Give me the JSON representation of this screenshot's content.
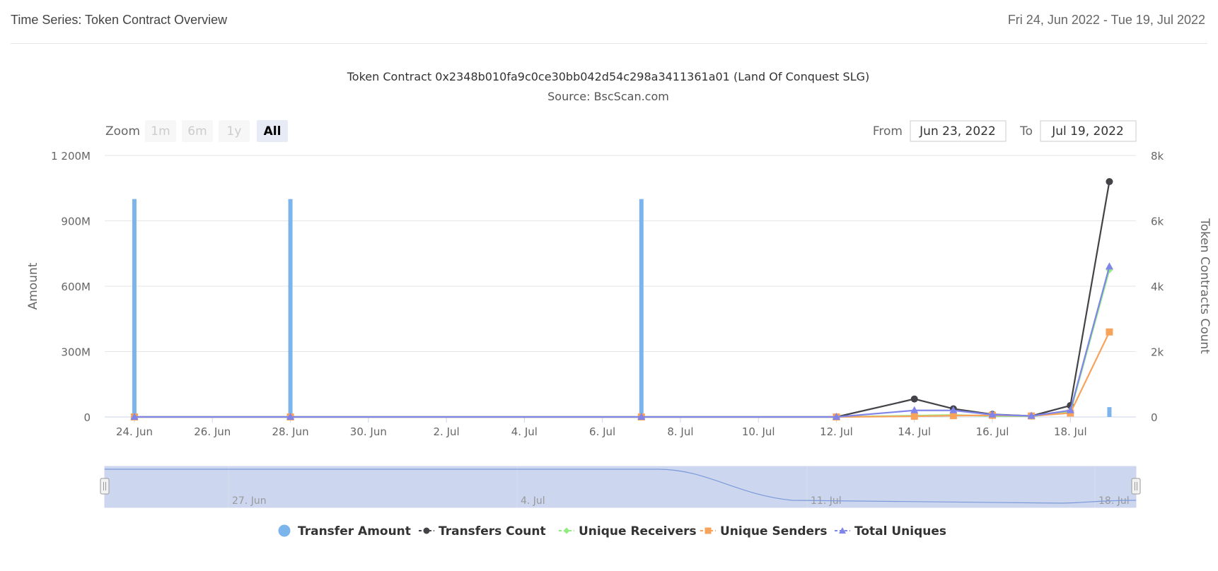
{
  "header": {
    "title": "Time Series: Token Contract Overview",
    "date_range": "Fri 24, Jun 2022 - Tue 19, Jul 2022"
  },
  "chart": {
    "title": "Token Contract 0x2348b010fa9c0ce30bb042d54c298a3411361a01 (Land Of Conquest SLG)",
    "subtitle": "Source: BscScan.com",
    "zoom_label": "Zoom",
    "zoom_buttons": [
      "1m",
      "6m",
      "1y",
      "All"
    ],
    "zoom_active": "All",
    "from_label": "From",
    "from_value": "Jun 23, 2022",
    "to_label": "To",
    "to_value": "Jul 19, 2022",
    "navigator_labels": [
      "27. Jun",
      "4. Jul",
      "11. Jul",
      "18. Jul"
    ]
  },
  "chart_data": {
    "type": "line",
    "x": [
      "2022-06-24",
      "2022-06-25",
      "2022-06-26",
      "2022-06-27",
      "2022-06-28",
      "2022-06-29",
      "2022-06-30",
      "2022-07-01",
      "2022-07-02",
      "2022-07-03",
      "2022-07-04",
      "2022-07-05",
      "2022-07-06",
      "2022-07-07",
      "2022-07-08",
      "2022-07-09",
      "2022-07-10",
      "2022-07-11",
      "2022-07-12",
      "2022-07-13",
      "2022-07-14",
      "2022-07-15",
      "2022-07-16",
      "2022-07-17",
      "2022-07-18",
      "2022-07-19"
    ],
    "x_tick_labels": [
      "24. Jun",
      "26. Jun",
      "28. Jun",
      "30. Jun",
      "2. Jul",
      "4. Jul",
      "6. Jul",
      "8. Jul",
      "10. Jul",
      "12. Jul",
      "14. Jul",
      "16. Jul",
      "18. Jul"
    ],
    "y_left": {
      "label": "Amount",
      "ticks": [
        "0",
        "300M",
        "600M",
        "900M",
        "1 200M"
      ],
      "range": [
        0,
        1200000000
      ]
    },
    "y_right": {
      "label": "Token Contracts Count",
      "ticks": [
        "0",
        "2k",
        "4k",
        "6k",
        "8k"
      ],
      "range": [
        0,
        8000
      ]
    },
    "grid": true,
    "legend_position": "bottom",
    "series": [
      {
        "name": "Transfer Amount",
        "axis": "left",
        "kind": "column",
        "color": "#7cb5ec",
        "points": [
          [
            "2022-06-24",
            1000000000
          ],
          [
            "2022-06-28",
            1000000000
          ],
          [
            "2022-07-07",
            1000000000
          ],
          [
            "2022-07-19",
            45000000
          ]
        ]
      },
      {
        "name": "Transfers Count",
        "axis": "right",
        "kind": "line",
        "color": "#434348",
        "marker": "circle",
        "points": [
          [
            "2022-06-24",
            0
          ],
          [
            "2022-06-28",
            0
          ],
          [
            "2022-07-07",
            0
          ],
          [
            "2022-07-12",
            0
          ],
          [
            "2022-07-14",
            550
          ],
          [
            "2022-07-15",
            250
          ],
          [
            "2022-07-16",
            80
          ],
          [
            "2022-07-17",
            30
          ],
          [
            "2022-07-18",
            350
          ],
          [
            "2022-07-19",
            7200
          ]
        ]
      },
      {
        "name": "Unique Receivers",
        "axis": "right",
        "kind": "line",
        "color": "#90ed7d",
        "marker": "diamond",
        "points": [
          [
            "2022-06-24",
            0
          ],
          [
            "2022-06-28",
            0
          ],
          [
            "2022-07-07",
            0
          ],
          [
            "2022-07-12",
            0
          ],
          [
            "2022-07-14",
            40
          ],
          [
            "2022-07-15",
            60
          ],
          [
            "2022-07-16",
            30
          ],
          [
            "2022-07-17",
            20
          ],
          [
            "2022-07-18",
            150
          ],
          [
            "2022-07-19",
            4500
          ]
        ]
      },
      {
        "name": "Unique Senders",
        "axis": "right",
        "kind": "line",
        "color": "#f7a35c",
        "marker": "square",
        "points": [
          [
            "2022-06-24",
            0
          ],
          [
            "2022-06-28",
            0
          ],
          [
            "2022-07-07",
            0
          ],
          [
            "2022-07-12",
            0
          ],
          [
            "2022-07-14",
            20
          ],
          [
            "2022-07-15",
            40
          ],
          [
            "2022-07-16",
            50
          ],
          [
            "2022-07-17",
            30
          ],
          [
            "2022-07-18",
            120
          ],
          [
            "2022-07-19",
            2600
          ]
        ]
      },
      {
        "name": "Total Uniques",
        "axis": "right",
        "kind": "line",
        "color": "#8085e9",
        "marker": "triangle",
        "points": [
          [
            "2022-06-24",
            0
          ],
          [
            "2022-06-28",
            0
          ],
          [
            "2022-07-07",
            0
          ],
          [
            "2022-07-12",
            0
          ],
          [
            "2022-07-14",
            200
          ],
          [
            "2022-07-15",
            200
          ],
          [
            "2022-07-16",
            70
          ],
          [
            "2022-07-17",
            30
          ],
          [
            "2022-07-18",
            200
          ],
          [
            "2022-07-19",
            4600
          ]
        ]
      }
    ]
  }
}
